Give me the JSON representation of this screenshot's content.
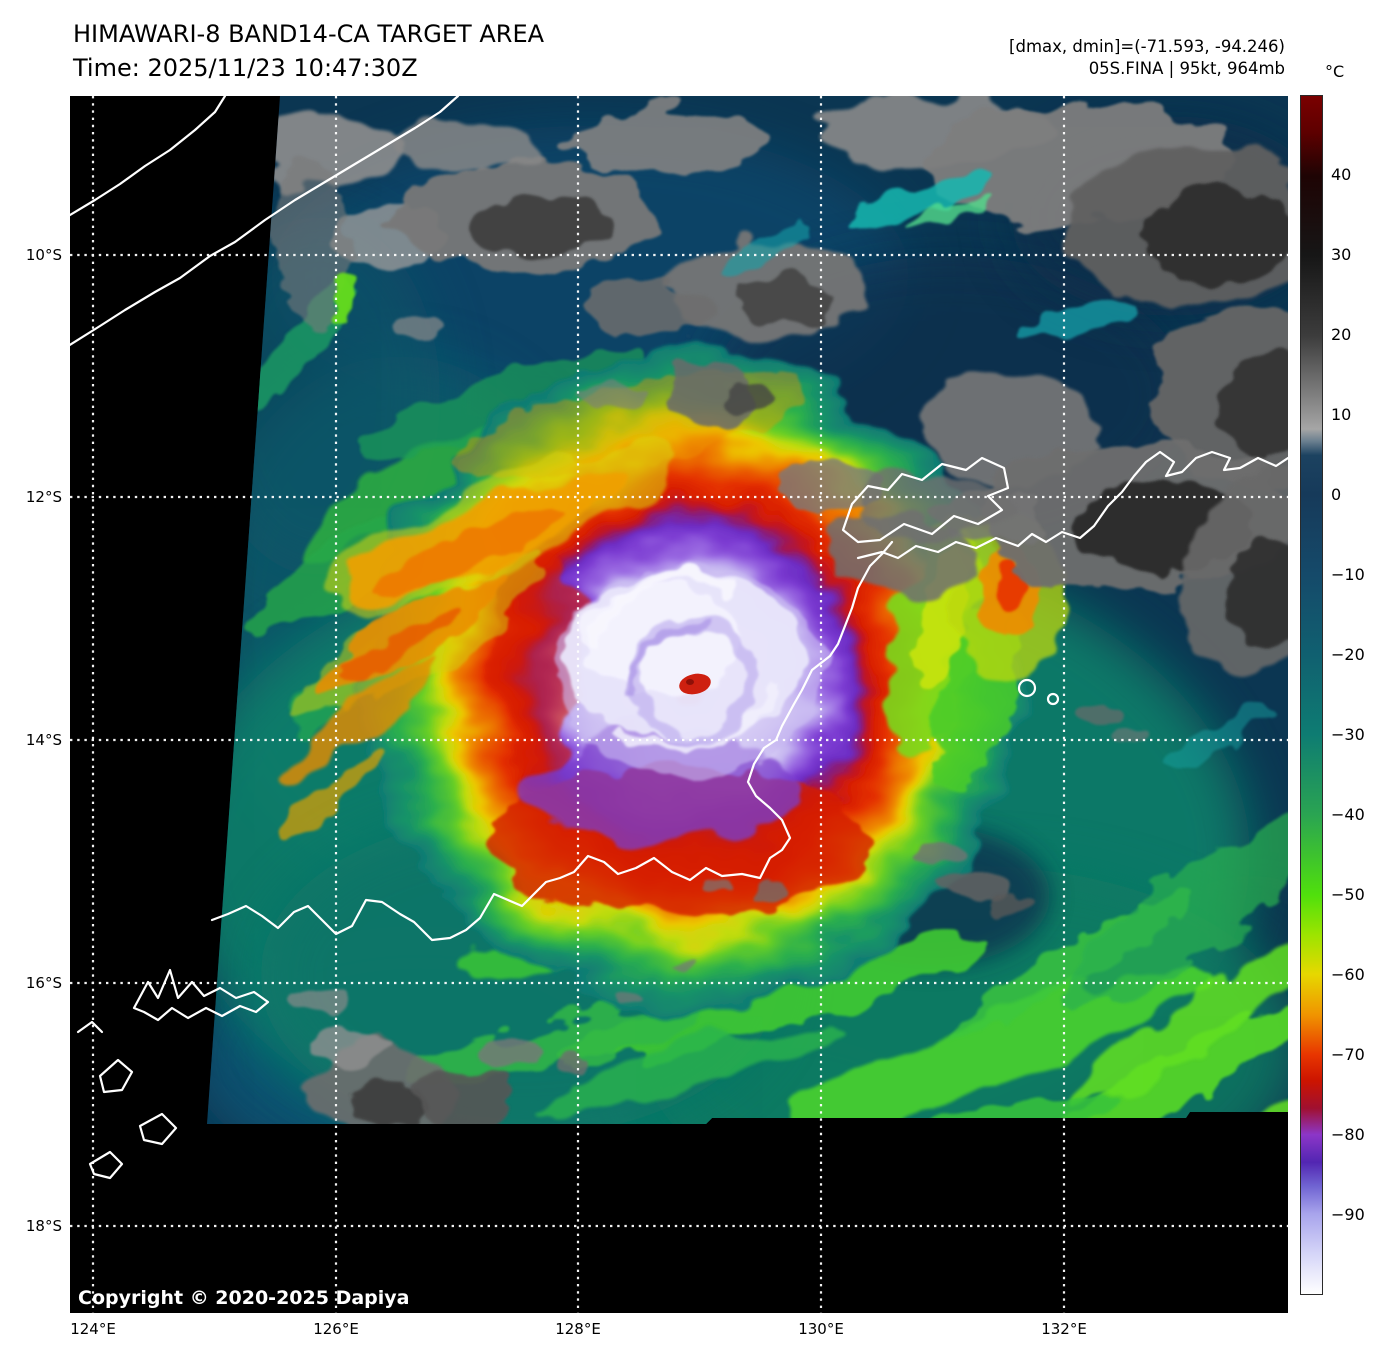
{
  "header": {
    "title": "HIMAWARI-8 BAND14-CA TARGET AREA",
    "time_line": "Time: 2025/11/23 10:47:30Z",
    "dmax_dmin_line": "[dmax, dmin]=(-71.593, -94.246)",
    "storm_line": "05S.FINA | 95kt, 964mb"
  },
  "map": {
    "copyright": "Copyright © 2020-2025 Dapiya"
  },
  "axes": {
    "lon_ticks": [
      {
        "label": "124°E"
      },
      {
        "label": "126°E"
      },
      {
        "label": "128°E"
      },
      {
        "label": "130°E"
      },
      {
        "label": "132°E"
      }
    ],
    "lat_ticks": [
      {
        "label": "10°S"
      },
      {
        "label": "12°S"
      },
      {
        "label": "14°S"
      },
      {
        "label": "16°S"
      },
      {
        "label": "18°S"
      }
    ]
  },
  "colorbar": {
    "unit": "°C",
    "ticks": [
      {
        "label": "40",
        "value": 40
      },
      {
        "label": "30",
        "value": 30
      },
      {
        "label": "20",
        "value": 20
      },
      {
        "label": "10",
        "value": 10
      },
      {
        "label": "0",
        "value": 0
      },
      {
        "label": "−10",
        "value": -10
      },
      {
        "label": "−20",
        "value": -20
      },
      {
        "label": "−30",
        "value": -30
      },
      {
        "label": "−40",
        "value": -40
      },
      {
        "label": "−50",
        "value": -50
      },
      {
        "label": "−60",
        "value": -60
      },
      {
        "label": "−70",
        "value": -70
      },
      {
        "label": "−80",
        "value": -80
      },
      {
        "label": "−90",
        "value": -90
      }
    ],
    "stops": [
      {
        "frac": 0.0,
        "color": "#7a0000"
      },
      {
        "frac": 0.03,
        "color": "#5e0000"
      },
      {
        "frac": 0.067,
        "color": "#1e0404"
      },
      {
        "frac": 0.133,
        "color": "#161616"
      },
      {
        "frac": 0.2,
        "color": "#3c3c3c"
      },
      {
        "frac": 0.267,
        "color": "#969696"
      },
      {
        "frac": 0.278,
        "color": "#a6a6a6"
      },
      {
        "frac": 0.288,
        "color": "#6c8090"
      },
      {
        "frac": 0.3,
        "color": "#1c4260"
      },
      {
        "frac": 0.333,
        "color": "#163a5a"
      },
      {
        "frac": 0.4,
        "color": "#154a6a"
      },
      {
        "frac": 0.467,
        "color": "#106070"
      },
      {
        "frac": 0.533,
        "color": "#0e7c72"
      },
      {
        "frac": 0.6,
        "color": "#2aa452"
      },
      {
        "frac": 0.667,
        "color": "#50e00c"
      },
      {
        "frac": 0.7,
        "color": "#9ce400"
      },
      {
        "frac": 0.733,
        "color": "#e6d800"
      },
      {
        "frac": 0.767,
        "color": "#f09400"
      },
      {
        "frac": 0.8,
        "color": "#e83600"
      },
      {
        "frac": 0.822,
        "color": "#cc1400"
      },
      {
        "frac": 0.845,
        "color": "#a01030"
      },
      {
        "frac": 0.867,
        "color": "#8c36c8"
      },
      {
        "frac": 0.89,
        "color": "#5226b2"
      },
      {
        "frac": 0.91,
        "color": "#7064d2"
      },
      {
        "frac": 0.933,
        "color": "#a8a4ec"
      },
      {
        "frac": 0.967,
        "color": "#d6d6f8"
      },
      {
        "frac": 1.0,
        "color": "#ffffff"
      }
    ]
  },
  "palette": {
    "eye_red": "#ce2010",
    "cdo_white": "#f0eefd",
    "ring_purple": "#7c3cd2",
    "ring_red": "#d81e04",
    "band_orange": "#ee8c00",
    "band_yellow": "#ecc800",
    "band_green": "#38c238",
    "sea_teal": "#10806a",
    "ocean_navy": "#0b3652",
    "cloud_gray": "#7a7a7a",
    "coastline": "#ffffff",
    "nodata_black": "#000000"
  }
}
